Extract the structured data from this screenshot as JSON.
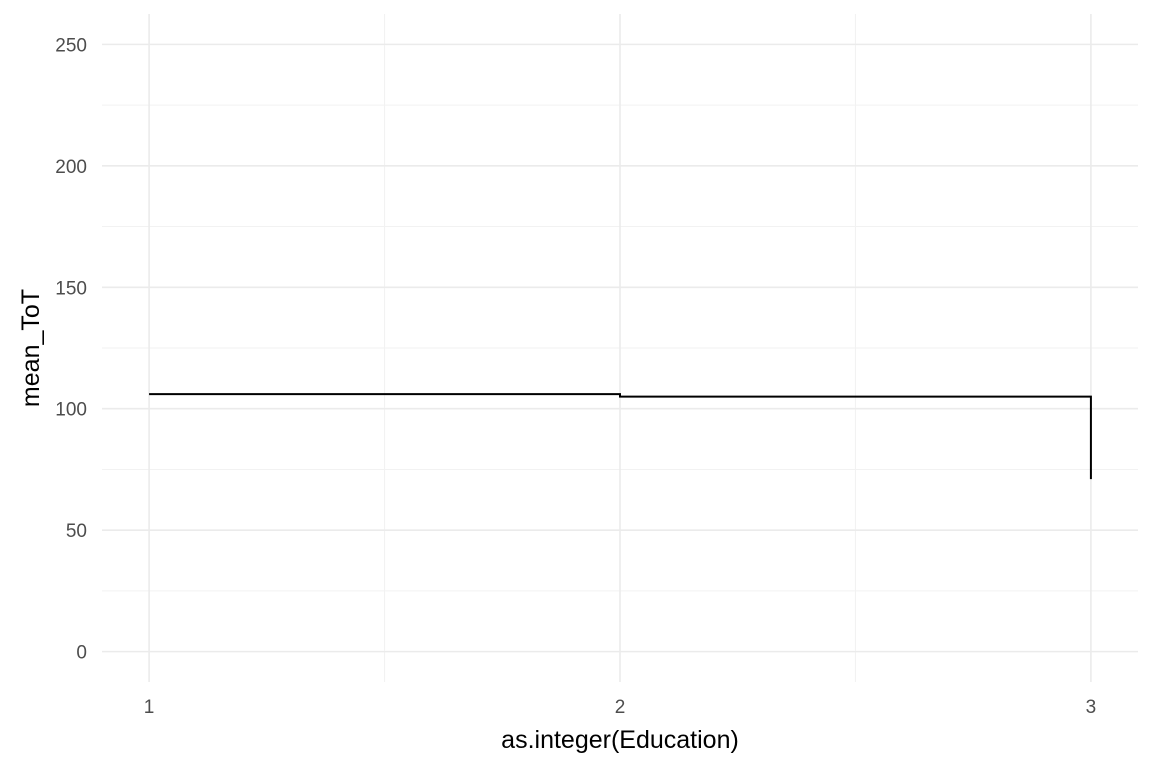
{
  "chart_data": {
    "type": "line",
    "geom": "step",
    "x": [
      1,
      2,
      3,
      3
    ],
    "y": [
      106,
      105,
      105,
      71
    ],
    "xlabel": "as.integer(Education)",
    "ylabel": "mean_ToT",
    "xlim": [
      0.9,
      3.1
    ],
    "ylim": [
      -12.5,
      262.5
    ],
    "x_ticks": [
      1,
      2,
      3
    ],
    "x_tick_labels": [
      "1",
      "2",
      "3"
    ],
    "x_minor_ticks": [
      1.5,
      2.5
    ],
    "y_ticks": [
      0,
      50,
      100,
      150,
      200,
      250
    ],
    "y_tick_labels": [
      "0",
      "50",
      "100",
      "150",
      "200",
      "250"
    ],
    "y_minor_ticks": [
      25,
      75,
      125,
      175,
      225
    ],
    "grid": true,
    "line_color": "#000000",
    "grid_color": "#ebebeb",
    "background": "#ffffff"
  }
}
